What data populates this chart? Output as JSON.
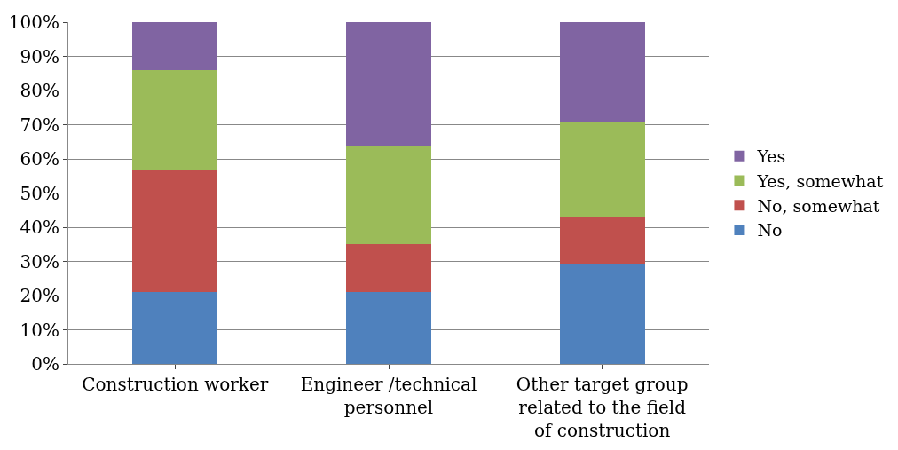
{
  "chart_data": {
    "type": "bar",
    "stacked": true,
    "categories": [
      "Construction worker",
      "Engineer /technical personnel",
      "Other target group related to the field of construction"
    ],
    "series": [
      {
        "name": "No",
        "color": "#4f81bd",
        "values": [
          21,
          21,
          29
        ]
      },
      {
        "name": "No, somewhat",
        "color": "#c0504d",
        "values": [
          36,
          14,
          14
        ]
      },
      {
        "name": "Yes, somewhat",
        "color": "#9bbb59",
        "values": [
          29,
          29,
          28
        ]
      },
      {
        "name": "Yes",
        "color": "#8064a2",
        "values": [
          14,
          36,
          29
        ]
      }
    ],
    "ylim": [
      0,
      100
    ],
    "yticks": [
      {
        "value": 0,
        "label": "0%"
      },
      {
        "value": 10,
        "label": "10%"
      },
      {
        "value": 20,
        "label": "20%"
      },
      {
        "value": 30,
        "label": "30%"
      },
      {
        "value": 40,
        "label": "40%"
      },
      {
        "value": 50,
        "label": "50%"
      },
      {
        "value": 60,
        "label": "60%"
      },
      {
        "value": 70,
        "label": "70%"
      },
      {
        "value": 80,
        "label": "80%"
      },
      {
        "value": 90,
        "label": "90%"
      },
      {
        "value": 100,
        "label": "100%"
      }
    ],
    "grid": "y",
    "legend": "right"
  }
}
